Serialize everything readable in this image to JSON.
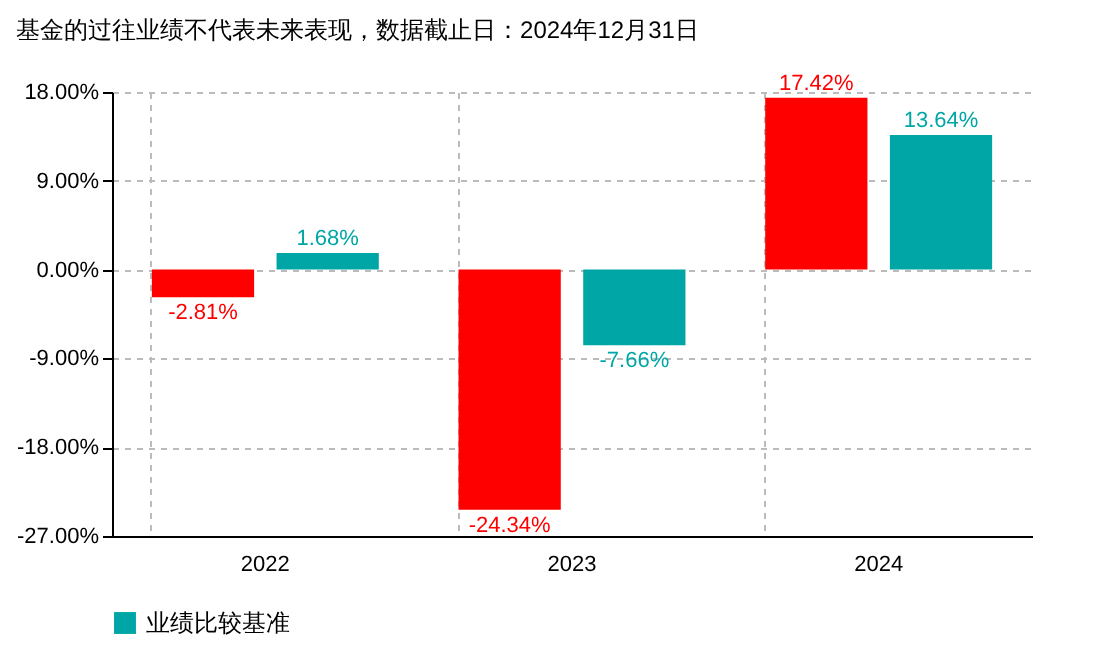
{
  "chart_data": {
    "type": "bar",
    "title": "基金的过往业绩不代表未来表现，数据截止日：2024年12月31日",
    "categories": [
      "2022",
      "2023",
      "2024"
    ],
    "series": [
      {
        "color": "#ff0000",
        "values": [
          -2.81,
          -24.34,
          17.42
        ],
        "value_labels": [
          "-2.81%",
          "-24.34%",
          "17.42%"
        ]
      },
      {
        "name": "业绩比较基准",
        "color": "#00a6a6",
        "values": [
          1.68,
          -7.66,
          13.64
        ],
        "value_labels": [
          "1.68%",
          "-7.66%",
          "13.64%"
        ]
      }
    ],
    "ylim": [
      -27,
      18
    ],
    "yticks": [
      {
        "value": -27,
        "label": "-27.00%"
      },
      {
        "value": -18,
        "label": "-18.00%"
      },
      {
        "value": -9,
        "label": "-9.00%"
      },
      {
        "value": 0,
        "label": "0.00%"
      },
      {
        "value": 9,
        "label": "9.00%"
      },
      {
        "value": 18,
        "label": "18.00%"
      }
    ],
    "grid": true,
    "legend": "bottom"
  }
}
